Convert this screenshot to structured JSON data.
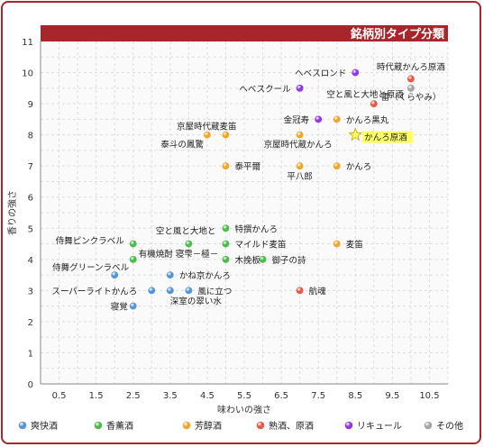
{
  "chart_data": {
    "type": "scatter",
    "title": "銘柄別タイプ分類",
    "xlabel": "味わいの強さ",
    "ylabel": "香りの強さ",
    "xlim": [
      0,
      11
    ],
    "ylim": [
      0,
      11
    ],
    "x_ticks": [
      "0.5",
      "1.5",
      "2.5",
      "3.5",
      "4.5",
      "5.5",
      "6.5",
      "7.5",
      "8.5",
      "9.5",
      "10.5"
    ],
    "y_ticks": [
      "0",
      "1",
      "2",
      "3",
      "4",
      "5",
      "6",
      "7",
      "8",
      "9",
      "10",
      "11"
    ],
    "grid": true,
    "legend_position": "bottom",
    "colors": {
      "soukai": "#4a8fd6",
      "kunshu": "#3fb83f",
      "jukushu_houkou": "#f0a020",
      "jukushu_genshu": "#e84c3a",
      "liqueur": "#8a2be2",
      "other": "#9e9e9e",
      "accent": "#a8262b",
      "highlight": "#ffff66"
    },
    "series": [
      {
        "name": "爽快酒",
        "color_key": "soukai",
        "points": [
          {
            "label": "スーパーライトかんろ",
            "x": 3.0,
            "y": 3.0
          },
          {
            "label": "寝覚",
            "x": 2.5,
            "y": 2.5
          },
          {
            "label": "侍舞グリーンラベル",
            "x": 2.0,
            "y": 3.5
          },
          {
            "label": "かね京かんろ",
            "x": 3.5,
            "y": 3.5
          },
          {
            "label": "風に立つ",
            "x": 4.0,
            "y": 3.0
          },
          {
            "label": "深室の翠い水",
            "x": 3.5,
            "y": 3.0
          }
        ]
      },
      {
        "name": "香薫酒",
        "color_key": "kunshu",
        "points": [
          {
            "label": "特撰かんろ",
            "x": 5.0,
            "y": 5.0
          },
          {
            "label": "空と風と大地と",
            "x": 4.0,
            "y": 4.5
          },
          {
            "label": "侍舞ピンクラベル",
            "x": 2.5,
            "y": 4.5
          },
          {
            "label": "マイルド麦笛",
            "x": 5.0,
            "y": 4.5
          },
          {
            "label": "有機焼酎 寝雫－極－",
            "x": 2.5,
            "y": 4.0
          },
          {
            "label": "木挽板",
            "x": 5.0,
            "y": 4.0
          },
          {
            "label": "御子の詩",
            "x": 6.0,
            "y": 4.0
          }
        ]
      },
      {
        "name": "芳醇酒",
        "color_key": "jukushu_houkou",
        "points": [
          {
            "label": "京屋時代蔵麦笛",
            "x": 5.0,
            "y": 8.0
          },
          {
            "label": "泰斗の鳳驚",
            "x": 4.5,
            "y": 8.0
          },
          {
            "label": "京屋時代蔵かんろ",
            "x": 7.0,
            "y": 8.0
          },
          {
            "label": "かんろ黒丸",
            "x": 8.0,
            "y": 8.5
          },
          {
            "label": "泰平爾",
            "x": 5.0,
            "y": 7.0
          },
          {
            "label": "平八郎",
            "x": 7.0,
            "y": 7.0
          },
          {
            "label": "かんろ",
            "x": 8.0,
            "y": 7.0
          },
          {
            "label": "麦笛",
            "x": 8.0,
            "y": 4.5
          }
        ]
      },
      {
        "name": "熟酒、原酒",
        "color_key": "jukushu_genshu",
        "points": [
          {
            "label": "時代蔵かんろ原酒",
            "x": 10.0,
            "y": 9.8
          },
          {
            "label": "雷（くらやみ）",
            "x": 9.0,
            "y": 9.0
          },
          {
            "label": "航魂",
            "x": 7.0,
            "y": 3.0
          }
        ]
      },
      {
        "name": "リキュール",
        "color_key": "liqueur",
        "points": [
          {
            "label": "ヘベスロンド",
            "x": 8.5,
            "y": 10.0
          },
          {
            "label": "ヘベスクール",
            "x": 7.0,
            "y": 9.5
          },
          {
            "label": "金冠寿",
            "x": 7.5,
            "y": 8.5
          }
        ]
      },
      {
        "name": "その他",
        "color_key": "other",
        "points": [
          {
            "label": "空と風と大地と原酒",
            "x": 10.0,
            "y": 9.5
          }
        ]
      }
    ],
    "highlight": {
      "label": "かんろ原酒",
      "x": 8.5,
      "y": 8.0
    }
  }
}
